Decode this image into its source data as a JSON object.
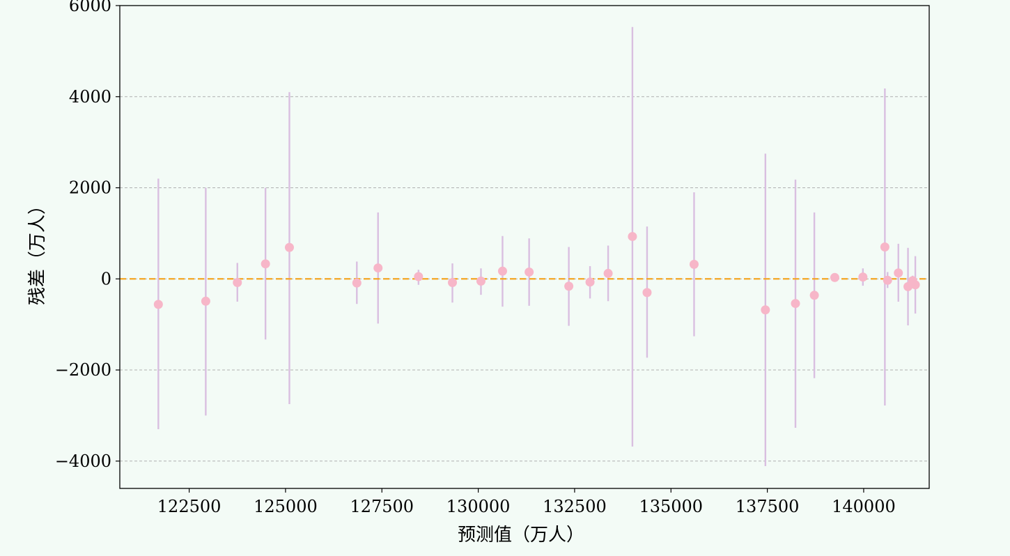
{
  "colors": {
    "background": "#f3fbf6",
    "plot_background": "#f3fbf6",
    "point": "#f7b6c8",
    "errorbar": "#d9bfe0",
    "zero_line": "#f5a623",
    "grid": "#b0b0b0"
  },
  "chart_data": {
    "type": "scatter",
    "xlabel": "预测值（万人）",
    "ylabel": "残差（万人）",
    "xlim": [
      120700,
      141700
    ],
    "ylim": [
      -4600,
      6000
    ],
    "xticks": [
      122500,
      125000,
      127500,
      130000,
      132500,
      135000,
      137500,
      140000
    ],
    "yticks": [
      -4000,
      -2000,
      0,
      2000,
      4000,
      6000
    ],
    "grid": "y-dashed",
    "reference_line": 0,
    "points": [
      {
        "x": 121700,
        "y": -560,
        "lo": -3300,
        "hi": 2200
      },
      {
        "x": 122930,
        "y": -490,
        "lo": -3000,
        "hi": 2000
      },
      {
        "x": 123750,
        "y": -80,
        "lo": -500,
        "hi": 350
      },
      {
        "x": 124480,
        "y": 330,
        "lo": -1330,
        "hi": 2000
      },
      {
        "x": 125100,
        "y": 690,
        "lo": -2750,
        "hi": 4100
      },
      {
        "x": 126850,
        "y": -90,
        "lo": -550,
        "hi": 380
      },
      {
        "x": 127400,
        "y": 240,
        "lo": -980,
        "hi": 1460
      },
      {
        "x": 128450,
        "y": 50,
        "lo": -130,
        "hi": 200
      },
      {
        "x": 129330,
        "y": -80,
        "lo": -520,
        "hi": 340
      },
      {
        "x": 130070,
        "y": -50,
        "lo": -350,
        "hi": 230
      },
      {
        "x": 130630,
        "y": 170,
        "lo": -610,
        "hi": 940
      },
      {
        "x": 131320,
        "y": 150,
        "lo": -590,
        "hi": 890
      },
      {
        "x": 132350,
        "y": -160,
        "lo": -1030,
        "hi": 700
      },
      {
        "x": 132900,
        "y": -70,
        "lo": -430,
        "hi": 280
      },
      {
        "x": 133370,
        "y": 120,
        "lo": -490,
        "hi": 730
      },
      {
        "x": 134000,
        "y": 930,
        "lo": -3680,
        "hi": 5530
      },
      {
        "x": 134380,
        "y": -300,
        "lo": -1730,
        "hi": 1150
      },
      {
        "x": 135600,
        "y": 320,
        "lo": -1260,
        "hi": 1900
      },
      {
        "x": 137450,
        "y": -680,
        "lo": -4110,
        "hi": 2750
      },
      {
        "x": 138230,
        "y": -540,
        "lo": -3270,
        "hi": 2180
      },
      {
        "x": 138720,
        "y": -360,
        "lo": -2180,
        "hi": 1460
      },
      {
        "x": 139250,
        "y": 30,
        "lo": -20,
        "hi": 80
      },
      {
        "x": 139980,
        "y": 40,
        "lo": -150,
        "hi": 230
      },
      {
        "x": 140550,
        "y": 700,
        "lo": -2780,
        "hi": 4180
      },
      {
        "x": 140620,
        "y": -30,
        "lo": -200,
        "hi": 150
      },
      {
        "x": 140900,
        "y": 130,
        "lo": -500,
        "hi": 770
      },
      {
        "x": 141150,
        "y": -170,
        "lo": -1020,
        "hi": 680
      },
      {
        "x": 141270,
        "y": -40,
        "lo": -150,
        "hi": 70
      },
      {
        "x": 141340,
        "y": -130,
        "lo": -760,
        "hi": 500
      }
    ]
  }
}
